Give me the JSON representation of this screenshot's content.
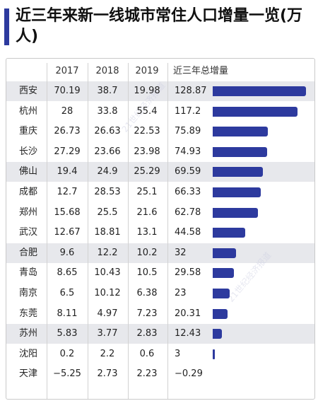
{
  "title": "近三年来新一线城市常住人口增量一览(万人)",
  "colors": {
    "bar": "#2d3a9e",
    "band": "#e7e8ec",
    "title_accent": "#2d3a9e"
  },
  "chart_data": {
    "type": "table",
    "title": "近三年来新一线城市常住人口增量一览(万人)",
    "columns": [
      "",
      "2017",
      "2018",
      "2019",
      "近三年总增量"
    ],
    "rows": [
      {
        "city": "西安",
        "y2017": "70.19",
        "y2018": "38.7",
        "y2019": "19.98",
        "total": "128.87",
        "total_value": 128.87,
        "band": true
      },
      {
        "city": "杭州",
        "y2017": "28",
        "y2018": "33.8",
        "y2019": "55.4",
        "total": "117.2",
        "total_value": 117.2,
        "band": false
      },
      {
        "city": "重庆",
        "y2017": "26.73",
        "y2018": "26.63",
        "y2019": "22.53",
        "total": "75.89",
        "total_value": 75.89,
        "band": false
      },
      {
        "city": "长沙",
        "y2017": "27.29",
        "y2018": "23.66",
        "y2019": "23.98",
        "total": "74.93",
        "total_value": 74.93,
        "band": false
      },
      {
        "city": "佛山",
        "y2017": "19.4",
        "y2018": "24.9",
        "y2019": "25.29",
        "total": "69.59",
        "total_value": 69.59,
        "band": true
      },
      {
        "city": "成都",
        "y2017": "12.7",
        "y2018": "28.53",
        "y2019": "25.1",
        "total": "66.33",
        "total_value": 66.33,
        "band": false
      },
      {
        "city": "郑州",
        "y2017": "15.68",
        "y2018": "25.5",
        "y2019": "21.6",
        "total": "62.78",
        "total_value": 62.78,
        "band": false
      },
      {
        "city": "武汉",
        "y2017": "12.67",
        "y2018": "18.81",
        "y2019": "13.1",
        "total": "44.58",
        "total_value": 44.58,
        "band": false
      },
      {
        "city": "合肥",
        "y2017": "9.6",
        "y2018": "12.2",
        "y2019": "10.2",
        "total": "32",
        "total_value": 32,
        "band": true
      },
      {
        "city": "青岛",
        "y2017": "8.65",
        "y2018": "10.43",
        "y2019": "10.5",
        "total": "29.58",
        "total_value": 29.58,
        "band": false
      },
      {
        "city": "南京",
        "y2017": "6.5",
        "y2018": "10.12",
        "y2019": "6.38",
        "total": "23",
        "total_value": 23,
        "band": false
      },
      {
        "city": "东莞",
        "y2017": "8.11",
        "y2018": "4.97",
        "y2019": "7.23",
        "total": "20.31",
        "total_value": 20.31,
        "band": false
      },
      {
        "city": "苏州",
        "y2017": "5.83",
        "y2018": "3.77",
        "y2019": "2.83",
        "total": "12.43",
        "total_value": 12.43,
        "band": true
      },
      {
        "city": "沈阳",
        "y2017": "0.2",
        "y2018": "2.2",
        "y2019": "0.6",
        "total": "3",
        "total_value": 3,
        "band": false
      },
      {
        "city": "天津",
        "y2017": "−5.25",
        "y2018": "2.73",
        "y2019": "2.23",
        "total": "−0.29",
        "total_value": -0.29,
        "band": false
      }
    ]
  }
}
